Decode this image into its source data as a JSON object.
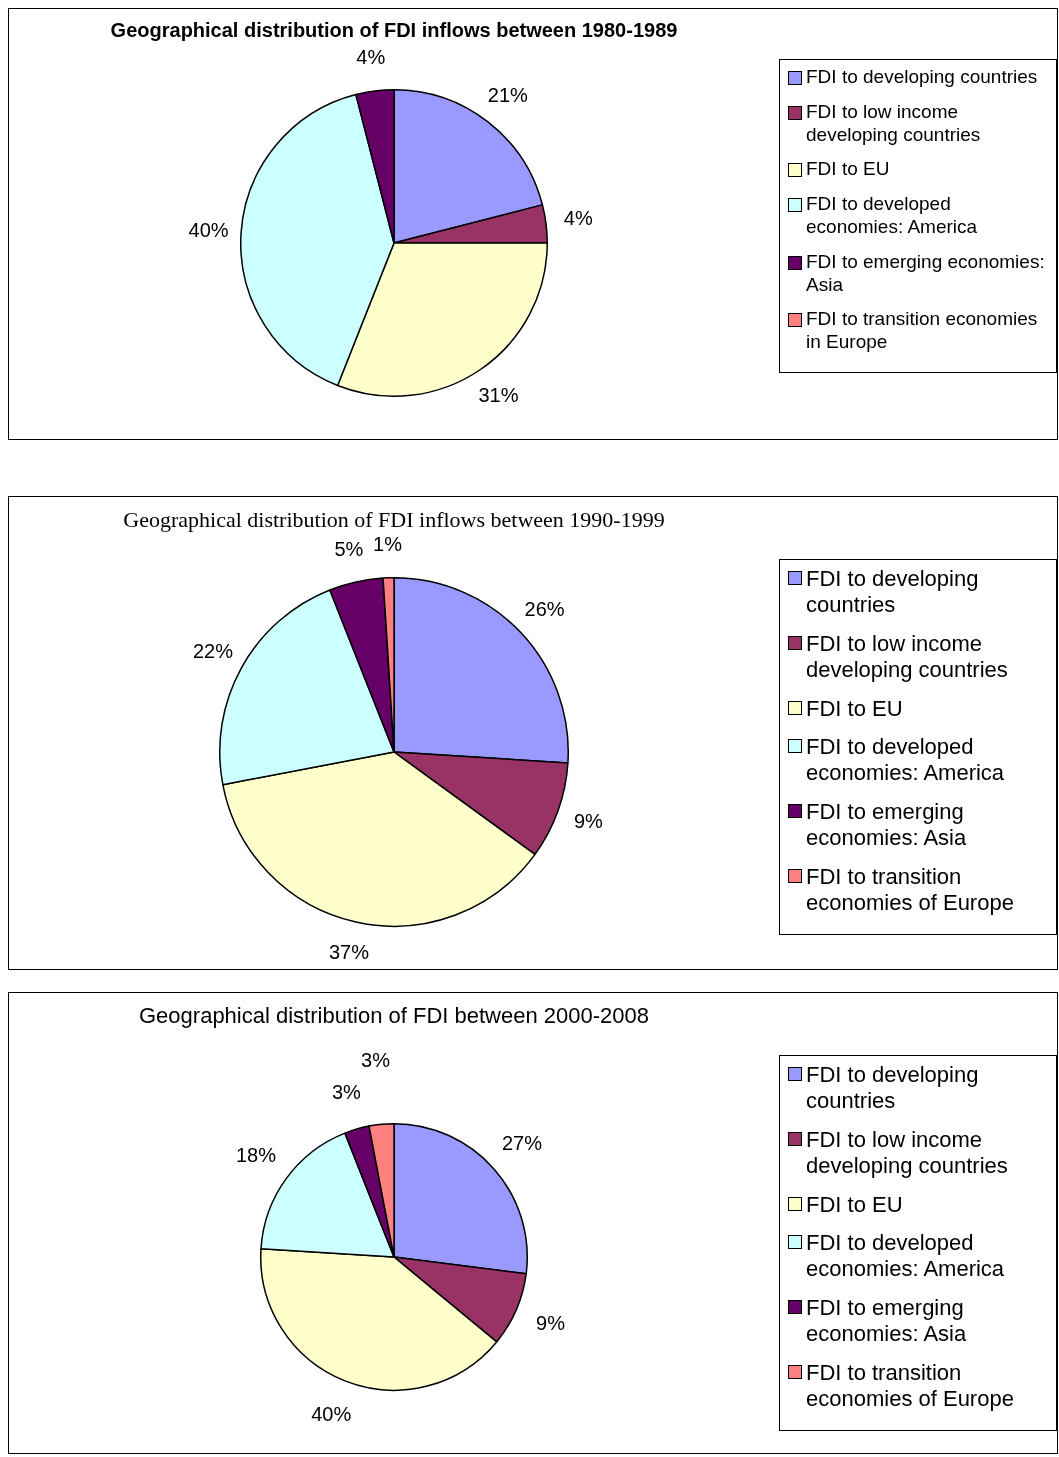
{
  "chart_data": [
    {
      "type": "pie",
      "title": "Geographical distribution of FDI inflows between 1980-1989",
      "categories": [
        "FDI to developing countries",
        "FDI to low income developing countries",
        "FDI to EU",
        "FDI to developed economies: America",
        "FDI to emerging economies: Asia",
        "FDI to transition economies in Europe"
      ],
      "values": [
        21,
        4,
        31,
        40,
        4,
        0
      ],
      "value_labels": [
        "21%",
        "4%",
        "31%",
        "40%",
        "4%",
        null
      ],
      "colors": [
        "#9999ff",
        "#993366",
        "#ffffcc",
        "#ccffff",
        "#660066",
        "#ff8080"
      ],
      "legend": "right"
    },
    {
      "type": "pie",
      "title": "Geographical distribution of FDI inflows between 1990-1999",
      "categories": [
        "FDI to developing countries",
        "FDI to low income developing countries",
        "FDI to EU",
        "FDI to developed economies: America",
        "FDI to emerging economies: Asia",
        "FDI to transition economies of Europe"
      ],
      "values": [
        26,
        9,
        37,
        22,
        5,
        1
      ],
      "value_labels": [
        "26%",
        "9%",
        "37%",
        "22%",
        "5%",
        "1%"
      ],
      "colors": [
        "#9999ff",
        "#993366",
        "#ffffcc",
        "#ccffff",
        "#660066",
        "#ff8080"
      ],
      "legend": "right"
    },
    {
      "type": "pie",
      "title": "Geographical distribution of FDI between 2000-2008",
      "categories": [
        "FDI to developing countries",
        "FDI to low income developing countries",
        "FDI to EU",
        "FDI to developed economies: America",
        "FDI to emerging economies: Asia",
        "FDI to transition economies of Europe"
      ],
      "values": [
        27,
        9,
        40,
        18,
        3,
        3
      ],
      "value_labels": [
        "27%",
        "9%",
        "40%",
        "18%",
        "3%",
        "3%"
      ],
      "colors": [
        "#9999ff",
        "#993366",
        "#ffffcc",
        "#ccffff",
        "#660066",
        "#ff8080"
      ],
      "legend": "right"
    }
  ]
}
